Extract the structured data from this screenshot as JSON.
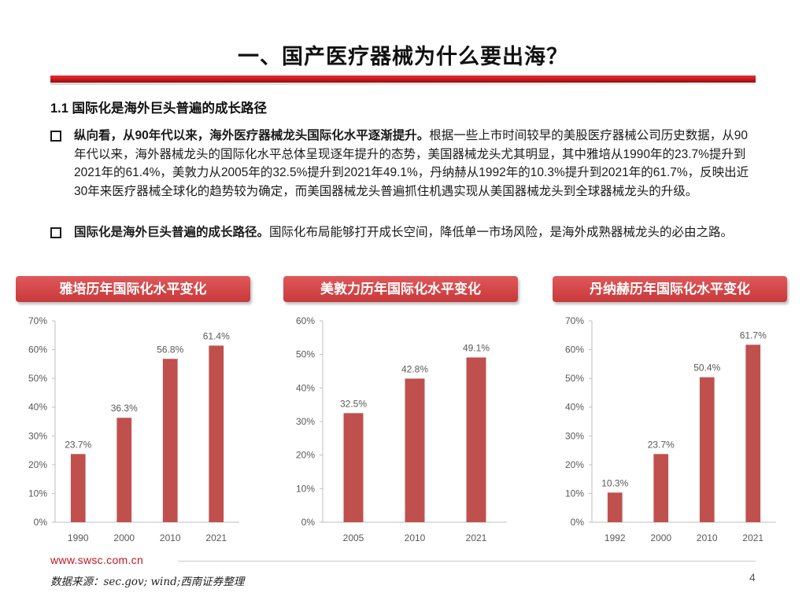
{
  "header": {
    "title": "一、国产医疗器械为什么要出海？"
  },
  "section": {
    "heading": "1.1 国际化是海外巨头普遍的成长路径"
  },
  "bullets": [
    {
      "bold": "纵向看，从90年代以来，海外医疗器械龙头国际化水平逐渐提升。",
      "text": "根据一些上市时间较早的美股医疗器械公司历史数据，从90年代以来，海外器械龙头的国际化水平总体呈现逐年提升的态势，美国器械龙头尤其明显，其中雅培从1990年的23.7%提升到2021年的61.4%，美敦力从2005年的32.5%提升到2021年49.1%，丹纳赫从1992年的10.3%提升到2021年的61.7%，反映出近30年来医疗器械全球化的趋势较为确定，而美国器械龙头普遍抓住机遇实现从美国器械龙头到全球器械龙头的升级。"
    },
    {
      "bold": "国际化是海外巨头普遍的成长路径。",
      "text": "国际化布局能够打开成长空间，降低单一市场风险，是海外成熟器械龙头的必由之路。"
    }
  ],
  "colors": {
    "bar": "#c0504d",
    "axis": "#bfbfbf",
    "tick_text": "#595959",
    "accent_red": "#c4161c"
  },
  "chart_data": [
    {
      "type": "bar",
      "title": "雅培历年国际化水平变化",
      "categories": [
        "1990",
        "2000",
        "2010",
        "2021"
      ],
      "values": [
        23.7,
        36.3,
        56.8,
        61.4
      ],
      "labels": [
        "23.7%",
        "36.3%",
        "56.8%",
        "61.4%"
      ],
      "ylim": [
        0,
        70
      ],
      "yticks": [
        0,
        10,
        20,
        30,
        40,
        50,
        60,
        70
      ],
      "ytick_labels": [
        "0%",
        "10%",
        "20%",
        "30%",
        "40%",
        "50%",
        "60%",
        "70%"
      ],
      "xlabel": "",
      "ylabel": "",
      "grid": false
    },
    {
      "type": "bar",
      "title": "美敦力历年国际化水平变化",
      "categories": [
        "2005",
        "2010",
        "2021"
      ],
      "values": [
        32.5,
        42.8,
        49.1
      ],
      "labels": [
        "32.5%",
        "42.8%",
        "49.1%"
      ],
      "ylim": [
        0,
        60
      ],
      "yticks": [
        0,
        10,
        20,
        30,
        40,
        50,
        60
      ],
      "ytick_labels": [
        "0%",
        "10%",
        "20%",
        "30%",
        "40%",
        "50%",
        "60%"
      ],
      "xlabel": "",
      "ylabel": "",
      "grid": false
    },
    {
      "type": "bar",
      "title": "丹纳赫历年国际化水平变化",
      "categories": [
        "1992",
        "2000",
        "2010",
        "2021"
      ],
      "values": [
        10.3,
        23.7,
        50.4,
        61.7
      ],
      "labels": [
        "10.3%",
        "23.7%",
        "50.4%",
        "61.7%"
      ],
      "ylim": [
        0,
        70
      ],
      "yticks": [
        0,
        10,
        20,
        30,
        40,
        50,
        60,
        70
      ],
      "ytick_labels": [
        "0%",
        "10%",
        "20%",
        "30%",
        "40%",
        "50%",
        "60%",
        "70%"
      ],
      "xlabel": "",
      "ylabel": "",
      "grid": false
    }
  ],
  "footer": {
    "url": "www.swsc.com.cn",
    "source": "数据来源：sec.gov; wind;西南证券整理",
    "page_number": "4"
  }
}
